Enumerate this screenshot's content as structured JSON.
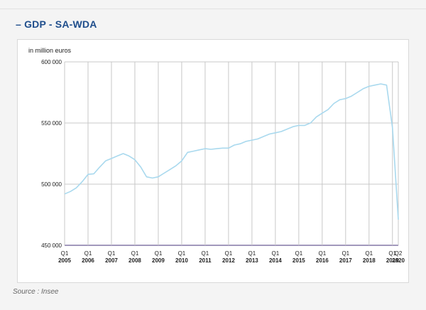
{
  "header": {
    "title": "– GDP - SA-WDA"
  },
  "footer": {
    "source": "Source : Insee"
  },
  "colors": {
    "title": "#1f4e8c",
    "line": "#a9d9ee",
    "baseline": "#6b5b95",
    "grid": "#c8c8c8"
  },
  "chart_data": {
    "type": "line",
    "ylabel": "in million euros",
    "ylim": [
      450000,
      600000
    ],
    "yticks": [
      450000,
      500000,
      550000,
      600000
    ],
    "ytick_labels": [
      "450 000",
      "500 000",
      "550 000",
      "600 000"
    ],
    "x_start_label": "Q1 2005",
    "x_end_label": "Q2 2020",
    "xticks": [
      {
        "q": "Q1",
        "y": "2005"
      },
      {
        "q": "Q1",
        "y": "2006"
      },
      {
        "q": "Q1",
        "y": "2007"
      },
      {
        "q": "Q1",
        "y": "2008"
      },
      {
        "q": "Q1",
        "y": "2009"
      },
      {
        "q": "Q1",
        "y": "2010"
      },
      {
        "q": "Q1",
        "y": "2011"
      },
      {
        "q": "Q1",
        "y": "2012"
      },
      {
        "q": "Q1",
        "y": "2013"
      },
      {
        "q": "Q1",
        "y": "2014"
      },
      {
        "q": "Q1",
        "y": "2015"
      },
      {
        "q": "Q1",
        "y": "2016"
      },
      {
        "q": "Q1",
        "y": "2017"
      },
      {
        "q": "Q1",
        "y": "2018"
      },
      {
        "q": "Q1",
        "y": "2019"
      },
      {
        "q": "Q2",
        "y": "2020"
      }
    ],
    "grid": true,
    "series": [
      {
        "values": [
          492000,
          494000,
          497000,
          502000,
          508000,
          508500,
          514000,
          519000,
          521000,
          523000,
          525000,
          523000,
          520000,
          514000,
          506000,
          505000,
          506000,
          509000,
          512000,
          515000,
          519000,
          526000,
          527000,
          528000,
          529000,
          528500,
          529000,
          529500,
          529500,
          532000,
          533000,
          535000,
          536000,
          537000,
          539000,
          541000,
          542000,
          543000,
          545000,
          547000,
          548000,
          548000,
          550000,
          555000,
          558000,
          561000,
          566000,
          569000,
          570000,
          572000,
          575000,
          578000,
          580000,
          581000,
          582000,
          581000,
          546000,
          471000
        ]
      }
    ]
  }
}
